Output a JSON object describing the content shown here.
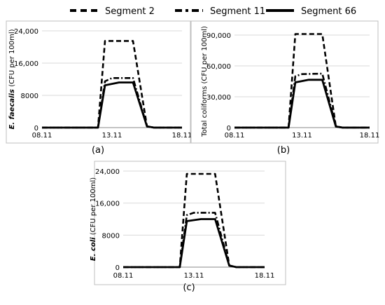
{
  "legend": {
    "entries": [
      {
        "name": "Segment 2",
        "style": "dashed"
      },
      {
        "name": "Segment 11",
        "style": "dash-dot"
      },
      {
        "name": "Segment 66",
        "style": "solid"
      }
    ],
    "placement": "top"
  },
  "chart_data": [
    {
      "type": "line",
      "panel_label": "(a)",
      "ylabel_italic": "E. faecalis",
      "ylabel_rest": " (CFU per 100ml)",
      "xlim": [
        "08.11",
        "18.11"
      ],
      "x_ticks": [
        "08.11",
        "13.11",
        "18.11"
      ],
      "ylim": [
        0,
        24000
      ],
      "y_ticks": [
        0,
        8000,
        16000,
        24000
      ],
      "y_tick_labels": [
        "0",
        "8000",
        "16,000",
        "24,000"
      ],
      "grid": "horizontal",
      "series": [
        {
          "name": "Segment 2",
          "style": "dashed",
          "x": [
            "08.11",
            "12.11",
            "12.5",
            "14.5",
            "15.5",
            "16.0",
            "18.11"
          ],
          "y": [
            0,
            0,
            21500,
            21500,
            300,
            0,
            0
          ]
        },
        {
          "name": "Segment 11",
          "style": "dash-dot",
          "x": [
            "08.11",
            "12.11",
            "12.5",
            "13.0",
            "14.5",
            "15.5",
            "16.0",
            "18.11"
          ],
          "y": [
            0,
            0,
            11500,
            12300,
            12300,
            300,
            0,
            0
          ]
        },
        {
          "name": "Segment 66",
          "style": "solid",
          "x": [
            "08.11",
            "12.11",
            "12.5",
            "13.5",
            "14.5",
            "15.5",
            "16.0",
            "18.11"
          ],
          "y": [
            0,
            0,
            10500,
            11200,
            11200,
            300,
            0,
            0
          ]
        }
      ]
    },
    {
      "type": "line",
      "panel_label": "(b)",
      "ylabel_italic": "",
      "ylabel_rest": "Total coliforms (CFU per 100ml)",
      "xlim": [
        "08.11",
        "18.11"
      ],
      "x_ticks": [
        "08.11",
        "13.11",
        "18.11"
      ],
      "ylim": [
        0,
        90000
      ],
      "y_ticks": [
        0,
        30000,
        60000,
        90000
      ],
      "y_tick_labels": [
        "0",
        "30,000",
        "60,000",
        "90,000"
      ],
      "grid": "horizontal",
      "series": [
        {
          "name": "Segment 2",
          "style": "dashed",
          "x": [
            "08.11",
            "12.11",
            "12.5",
            "14.5",
            "15.5",
            "16.0",
            "18.11"
          ],
          "y": [
            0,
            0,
            91000,
            91000,
            1000,
            0,
            0
          ]
        },
        {
          "name": "Segment 11",
          "style": "dash-dot",
          "x": [
            "08.11",
            "12.11",
            "12.5",
            "13.0",
            "14.5",
            "15.5",
            "16.0",
            "18.11"
          ],
          "y": [
            0,
            0,
            50000,
            52000,
            52500,
            1500,
            0,
            0
          ]
        },
        {
          "name": "Segment 66",
          "style": "solid",
          "x": [
            "08.11",
            "12.11",
            "12.5",
            "13.5",
            "14.5",
            "15.5",
            "16.0",
            "18.11"
          ],
          "y": [
            0,
            0,
            44000,
            46500,
            46500,
            1000,
            0,
            0
          ]
        }
      ]
    },
    {
      "type": "line",
      "panel_label": "(c)",
      "ylabel_italic": "E. coli",
      "ylabel_rest": " (CFU per 100ml)",
      "xlim": [
        "08.11",
        "18.11"
      ],
      "x_ticks": [
        "08.11",
        "13.11",
        "18.11"
      ],
      "ylim": [
        0,
        24000
      ],
      "y_ticks": [
        0,
        8000,
        16000,
        24000
      ],
      "y_tick_labels": [
        "0",
        "8000",
        "16,000",
        "24,000"
      ],
      "grid": "horizontal",
      "series": [
        {
          "name": "Segment 2",
          "style": "dashed",
          "x": [
            "08.11",
            "12.11",
            "12.5",
            "14.5",
            "15.5",
            "16.0",
            "18.11"
          ],
          "y": [
            0,
            0,
            23300,
            23300,
            400,
            0,
            0
          ]
        },
        {
          "name": "Segment 11",
          "style": "dash-dot",
          "x": [
            "08.11",
            "12.11",
            "12.5",
            "13.0",
            "14.5",
            "15.5",
            "16.0",
            "18.11"
          ],
          "y": [
            0,
            0,
            13000,
            13600,
            13600,
            400,
            0,
            0
          ]
        },
        {
          "name": "Segment 66",
          "style": "solid",
          "x": [
            "08.11",
            "12.11",
            "12.5",
            "13.5",
            "14.5",
            "15.5",
            "16.0",
            "18.11"
          ],
          "y": [
            0,
            0,
            11500,
            12000,
            12000,
            400,
            0,
            0
          ]
        }
      ]
    }
  ]
}
